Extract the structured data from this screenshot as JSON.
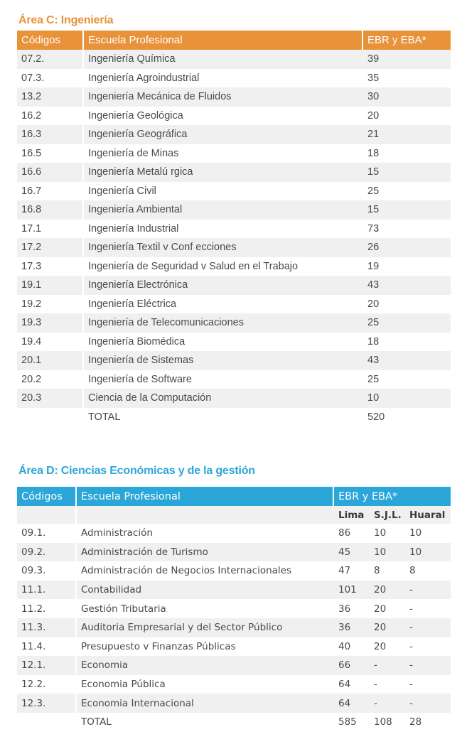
{
  "area_c": {
    "title": "Área C: Ingeniería",
    "accent_color": "#e8923a",
    "headers": {
      "code": "Códigos",
      "school": "Escuela Profesional",
      "quota": "EBR y EBA*"
    },
    "rows": [
      {
        "code": "07.2.",
        "school": "Ingeniería Química",
        "quota": "39"
      },
      {
        "code": "07.3.",
        "school": "Ingeniería Agroindustrial",
        "quota": "35"
      },
      {
        "code": "13.2",
        "school": "Ingeniería Mecánica de Fluidos",
        "quota": "30"
      },
      {
        "code": "16.2",
        "school": "Ingeniería Geológica",
        "quota": "20"
      },
      {
        "code": "16.3",
        "school": "Ingeniería Geográfica",
        "quota": "21"
      },
      {
        "code": "16.5",
        "school": "Ingeniería de Minas",
        "quota": "18"
      },
      {
        "code": "16.6",
        "school": "Ingeniería Metalú rgica",
        "quota": "15"
      },
      {
        "code": "16.7",
        "school": "Ingeniería Civil",
        "quota": "25"
      },
      {
        "code": "16.8",
        "school": "Ingeniería Ambiental",
        "quota": "15"
      },
      {
        "code": "17.1",
        "school": "Ingeniería Industrial",
        "quota": "73"
      },
      {
        "code": "17.2",
        "school": "Ingeniería Textil v Conf ecciones",
        "quota": "26"
      },
      {
        "code": "17.3",
        "school": "Ingeniería de Seguridad v Salud en el Trabajo",
        "quota": "19"
      },
      {
        "code": "19.1",
        "school": "Ingeniería Electrónica",
        "quota": "43"
      },
      {
        "code": "19.2",
        "school": "Ingeniería Eléctrica",
        "quota": "20"
      },
      {
        "code": "19.3",
        "school": "Ingeniería de Telecomunicaciones",
        "quota": "25"
      },
      {
        "code": "19.4",
        "school": "Ingeniería Biomédica",
        "quota": "18"
      },
      {
        "code": "20.1",
        "school": "Ingeniería de Sistemas",
        "quota": "43"
      },
      {
        "code": "20.2",
        "school": "Ingeniería de Software",
        "quota": "25"
      },
      {
        "code": "20.3",
        "school": "Ciencia de la Computación",
        "quota": "10"
      }
    ],
    "total": {
      "label": "TOTAL",
      "quota": "520"
    }
  },
  "area_d": {
    "title": "Área D: Ciencias Económicas y de la gestión",
    "accent_color": "#2ba6d9",
    "headers": {
      "code": "Códigos",
      "school": "Escuela Profesional",
      "quota": "EBR y EBA*",
      "lima": "Lima",
      "sjl": "S.J.L.",
      "huaral": "Huaral"
    },
    "rows": [
      {
        "code": "09.1.",
        "school": "Administración",
        "lima": "86",
        "sjl": "10",
        "huaral": "10"
      },
      {
        "code": "09.2.",
        "school": "Administración de Turismo",
        "lima": "45",
        "sjl": "10",
        "huaral": "10"
      },
      {
        "code": "09.3.",
        "school": "Administración de Negocios Internacionales",
        "lima": "47",
        "sjl": "8",
        "huaral": "8"
      },
      {
        "code": "11.1.",
        "school": "Contabilidad",
        "lima": "101",
        "sjl": "20",
        "huaral": "-"
      },
      {
        "code": "11.2.",
        "school": "Gestión Tributaria",
        "lima": "36",
        "sjl": "20",
        "huaral": "-"
      },
      {
        "code": "11.3.",
        "school": "Auditoria Empresarial y del Sector Público",
        "lima": "36",
        "sjl": "20",
        "huaral": "-"
      },
      {
        "code": "11.4.",
        "school": "Presupuesto v Finanzas Públicas",
        "lima": "40",
        "sjl": "20",
        "huaral": "-"
      },
      {
        "code": "12.1.",
        "school": "Economia",
        "lima": "66",
        "sjl": "-",
        "huaral": "-"
      },
      {
        "code": "12.2.",
        "school": "Economia Pública",
        "lima": "64",
        "sjl": "-",
        "huaral": "-"
      },
      {
        "code": "12.3.",
        "school": "Economia Internacional",
        "lima": "64",
        "sjl": "-",
        "huaral": "-"
      }
    ],
    "total": {
      "label": "TOTAL",
      "lima": "585",
      "sjl": "108",
      "huaral": "28"
    }
  }
}
